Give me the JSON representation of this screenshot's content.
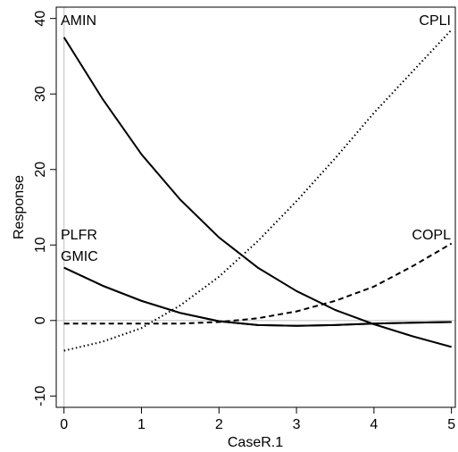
{
  "chart_data": {
    "type": "line",
    "xlabel": "CaseR.1",
    "ylabel": "Response",
    "xlim": [
      -0.1,
      5.05
    ],
    "ylim": [
      -11.5,
      41.5
    ],
    "xticks": [
      0,
      1,
      2,
      3,
      4,
      5
    ],
    "yticks": [
      -10,
      0,
      10,
      20,
      30,
      40
    ],
    "grid": false,
    "reference_lines": [
      {
        "axis": "y",
        "value": 0,
        "color": "#c8c8c8"
      },
      {
        "axis": "x",
        "value": 0,
        "color": "#c8c8c8"
      }
    ],
    "series": [
      {
        "name": "AMIN",
        "line_style": "solid",
        "color": "#000000",
        "x": [
          0,
          0.5,
          1,
          1.5,
          2,
          2.5,
          3,
          3.5,
          4,
          4.5,
          5
        ],
        "y": [
          37.5,
          29.3,
          22.0,
          16.0,
          11.0,
          7.0,
          3.9,
          1.4,
          -0.5,
          -2.1,
          -3.5
        ]
      },
      {
        "name": "CPLI",
        "line_style": "dotted",
        "color": "#000000",
        "x": [
          0,
          0.5,
          1,
          1.5,
          2,
          2.5,
          3,
          3.5,
          4,
          4.5,
          5
        ],
        "y": [
          -4.0,
          -2.8,
          -1.0,
          2.0,
          5.8,
          10.5,
          15.8,
          21.5,
          27.5,
          33.0,
          38.5
        ]
      },
      {
        "name": "COPL",
        "line_style": "dashed",
        "color": "#000000",
        "x": [
          0,
          0.5,
          1,
          1.5,
          2,
          2.5,
          3,
          3.5,
          4,
          4.5,
          5
        ],
        "y": [
          -0.4,
          -0.4,
          -0.4,
          -0.4,
          -0.2,
          0.3,
          1.2,
          2.6,
          4.5,
          7.2,
          10.2
        ]
      },
      {
        "name": "PLFR",
        "line_style": "solid",
        "color": "#000000",
        "x": [
          0,
          0.5,
          1,
          1.5,
          2,
          2.5,
          3,
          3.5,
          4,
          4.5,
          5
        ],
        "y": [
          7.0,
          4.6,
          2.6,
          1.0,
          -0.1,
          -0.6,
          -0.7,
          -0.6,
          -0.4,
          -0.3,
          -0.2
        ]
      },
      {
        "name": "GMIC",
        "line_style": "solid",
        "color": "#000000",
        "x": [
          0,
          0.5,
          1,
          1.5,
          2,
          2.5,
          3,
          3.5,
          4,
          4.5,
          5
        ],
        "y": [
          7.0,
          4.6,
          2.6,
          1.0,
          -0.1,
          -0.6,
          -0.7,
          -0.6,
          -0.4,
          -0.3,
          -0.2
        ]
      }
    ],
    "annotations": [
      {
        "text": "AMIN",
        "anchor": "top-left",
        "row": 1
      },
      {
        "text": "CPLI",
        "anchor": "top-right",
        "row": 1
      },
      {
        "text": "PLFR",
        "anchor": "left",
        "row": 1
      },
      {
        "text": "GMIC",
        "anchor": "left",
        "row": 2
      },
      {
        "text": "COPL",
        "anchor": "right",
        "row": 1
      }
    ]
  }
}
